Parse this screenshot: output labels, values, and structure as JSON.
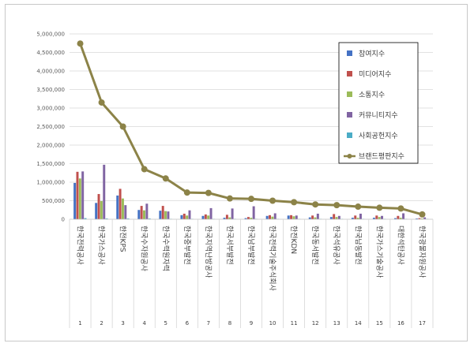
{
  "chart_data": {
    "type": "bar",
    "title": "",
    "xlabel": "",
    "ylabel": "",
    "ylim": [
      0,
      5000000
    ],
    "yticks": [
      "0",
      "500,000",
      "1,000,000",
      "1,500,000",
      "2,000,000",
      "2,500,000",
      "3,000,000",
      "3,500,000",
      "4,000,000",
      "4,500,000",
      "5,000,000"
    ],
    "grid": true,
    "legend_position": "right",
    "indices": [
      "1",
      "2",
      "3",
      "4",
      "5",
      "6",
      "7",
      "8",
      "9",
      "10",
      "11",
      "12",
      "13",
      "14",
      "15",
      "16",
      "17"
    ],
    "categories": [
      "한국전력공사",
      "한국가스공사",
      "한전KPS",
      "한국수자원공사",
      "한국수력원자력",
      "한국중부발전",
      "한국지역난방공사",
      "한국서부발전",
      "한국남부발전",
      "한국전력기술주식회사",
      "한전KDN",
      "한국동서발전",
      "한국석유공사",
      "한국남동발전",
      "한국가스기술공사",
      "대한석탄공사",
      "한국광물자원공사"
    ],
    "series": [
      {
        "name": "참여지수",
        "kind": "bar",
        "color": "#4472c4",
        "values": [
          980000,
          440000,
          640000,
          250000,
          230000,
          110000,
          90000,
          40000,
          30000,
          90000,
          100000,
          50000,
          60000,
          40000,
          40000,
          30000,
          20000
        ]
      },
      {
        "name": "미디어지수",
        "kind": "bar",
        "color": "#c0504d",
        "values": [
          1280000,
          680000,
          820000,
          360000,
          360000,
          150000,
          130000,
          120000,
          60000,
          110000,
          110000,
          100000,
          140000,
          100000,
          100000,
          90000,
          30000
        ]
      },
      {
        "name": "소통지수",
        "kind": "bar",
        "color": "#9bbb59",
        "values": [
          1100000,
          490000,
          560000,
          240000,
          220000,
          100000,
          100000,
          50000,
          40000,
          70000,
          80000,
          50000,
          60000,
          40000,
          60000,
          40000,
          20000
        ]
      },
      {
        "name": "커뮤니티지수",
        "kind": "bar",
        "color": "#8064a2",
        "values": [
          1290000,
          1470000,
          380000,
          420000,
          210000,
          240000,
          300000,
          290000,
          350000,
          160000,
          100000,
          150000,
          90000,
          150000,
          90000,
          160000,
          50000
        ]
      },
      {
        "name": "사회공헌지수",
        "kind": "bar",
        "color": "#4bacc6",
        "values": [
          30000,
          20000,
          20000,
          20000,
          10000,
          10000,
          10000,
          10000,
          10000,
          10000,
          10000,
          10000,
          10000,
          10000,
          10000,
          10000,
          10000
        ]
      },
      {
        "name": "브랜드평판지수",
        "kind": "line",
        "color": "#8c8348",
        "values": [
          4740000,
          3150000,
          2500000,
          1350000,
          1100000,
          720000,
          710000,
          560000,
          550000,
          500000,
          460000,
          400000,
          380000,
          340000,
          310000,
          290000,
          130000
        ]
      }
    ]
  }
}
